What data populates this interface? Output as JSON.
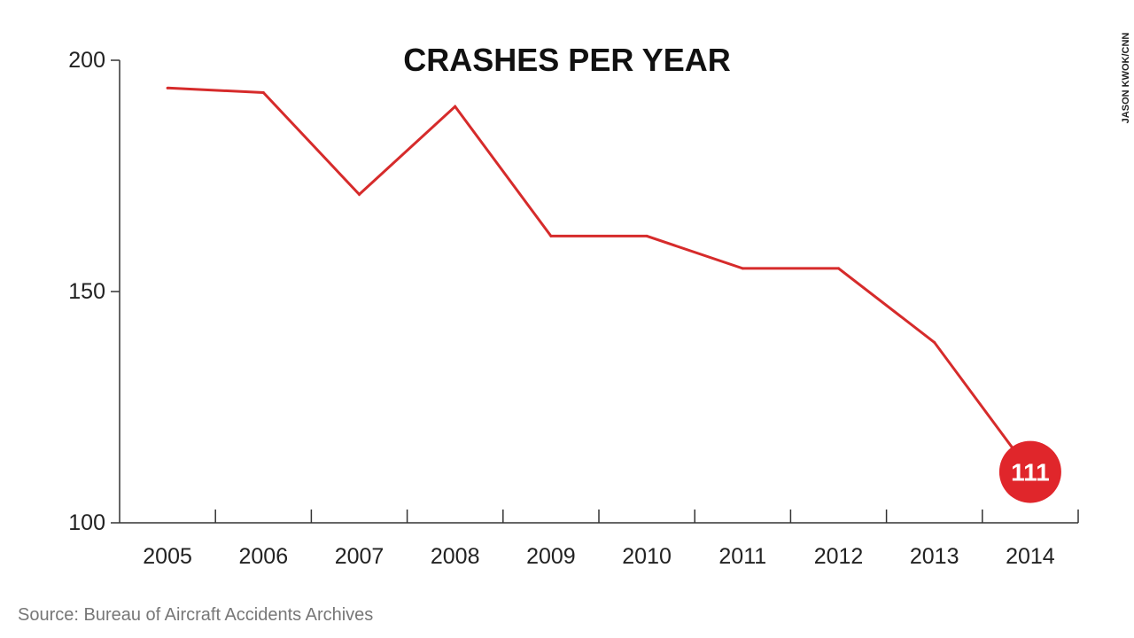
{
  "chart_data": {
    "type": "line",
    "title": "CRASHES PER YEAR",
    "xlabel": "",
    "ylabel": "",
    "categories": [
      "2005",
      "2006",
      "2007",
      "2008",
      "2009",
      "2010",
      "2011",
      "2012",
      "2013",
      "2014"
    ],
    "series": [
      {
        "values": [
          194,
          193,
          171,
          190,
          162,
          162,
          155,
          155,
          139,
          111
        ]
      }
    ],
    "ylim": [
      100,
      200
    ],
    "yticks": [
      "100",
      "150",
      "200"
    ],
    "grid": false,
    "highlight": {
      "category": "2014",
      "label": "111"
    },
    "colors": {
      "line": "#d62b2b",
      "callout": "#e0262b",
      "axis": "#333333"
    }
  },
  "source": "Source: Bureau of Aircraft Accidents Archives",
  "credit": "JASON KWOK/CNN"
}
